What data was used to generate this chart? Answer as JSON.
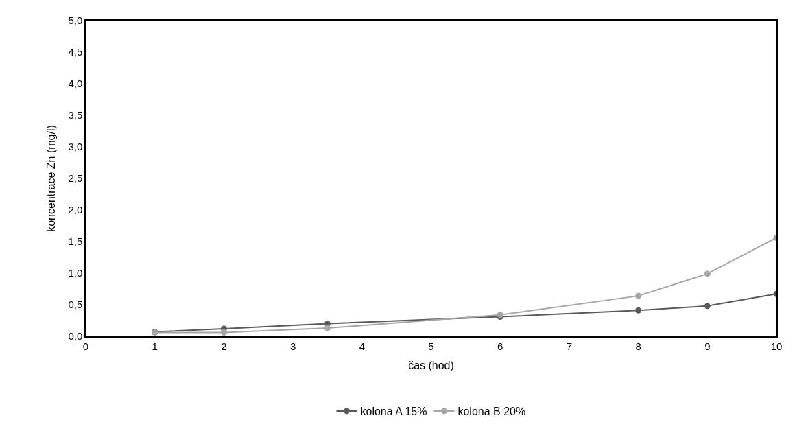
{
  "chart_data": {
    "type": "line",
    "xlabel": "čas (hod)",
    "ylabel": "koncentrace Zn (mg/l)",
    "x": [
      1,
      2,
      3.5,
      6,
      8,
      9,
      10
    ],
    "series": [
      {
        "name": "kolona A 15%",
        "color": "#595959",
        "values": [
          0.07,
          0.12,
          0.2,
          0.31,
          0.41,
          0.48,
          0.67
        ]
      },
      {
        "name": "kolona B 20%",
        "color": "#a6a6a6",
        "values": [
          0.06,
          0.06,
          0.13,
          0.34,
          0.64,
          0.99,
          1.56
        ]
      }
    ],
    "xlim": [
      0,
      10
    ],
    "xticks": [
      0,
      1,
      2,
      3,
      4,
      5,
      6,
      7,
      8,
      9,
      10
    ],
    "ylim": [
      0,
      5
    ],
    "yticks": [
      {
        "value": 0,
        "label": "0,0"
      },
      {
        "value": 0.5,
        "label": "0,5"
      },
      {
        "value": 1,
        "label": "1,0"
      },
      {
        "value": 1.5,
        "label": "1,5"
      },
      {
        "value": 2,
        "label": "2,0"
      },
      {
        "value": 2.5,
        "label": "2,5"
      },
      {
        "value": 3,
        "label": "3,0"
      },
      {
        "value": 3.5,
        "label": "3,5"
      },
      {
        "value": 4,
        "label": "4,0"
      },
      {
        "value": 4.5,
        "label": "4,5"
      },
      {
        "value": 5,
        "label": "5,0"
      }
    ],
    "grid": false,
    "legend": "bottom",
    "marker": "circle",
    "line_style": "solid"
  }
}
